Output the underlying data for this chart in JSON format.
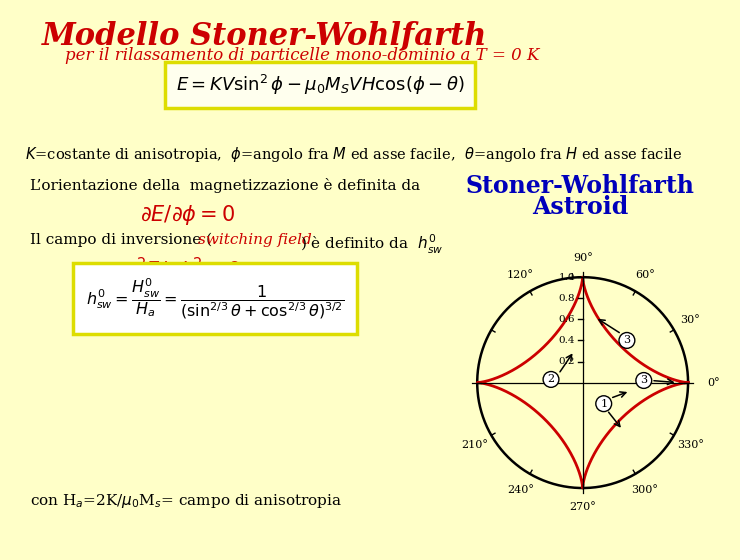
{
  "bg_color": "#ffffc8",
  "title": "Modello Stoner-Wohlfarth",
  "subtitle": "per il rilassamento di particelle mono-dominio a T = 0 K",
  "title_color": "#cc0000",
  "subtitle_color": "#cc0000",
  "astroid_title_line1": "Stoner-Wohlfarth",
  "astroid_title_line2": "Astroid",
  "astroid_title_color": "#0000bb",
  "formula_text": "$E = KV\\sin^2\\phi - \\mu_0 M_S V H \\cos(\\phi - \\theta)$",
  "line1": "$K$=costante di anisotropia,  $\\phi$=angolo fra $M$ ed asse facile,  $\\theta$=angolo fra $H$ ed asse facile",
  "line2a": "L’orientazione della  magnetizzazione è definita da",
  "line2b_italic": "$\\partial E/\\partial\\phi = 0$",
  "line3a_normal": "Il campo di inversione (",
  "line3a_red": "switching field",
  "line3a_end": ") è definito da  $h^0_{sw}$",
  "line3b_italic": "$\\partial^2 E/\\partial\\phi^2 = 0$",
  "formula2_text": "$h^0_{sw} = \\dfrac{H^0_{sw}}{H_a} = \\dfrac{1}{\\left(\\sin^{2/3}\\theta + \\cos^{2/3}\\theta\\right)^{3/2}}$",
  "line4": "con H$_a$=2K/$\\mu_0$M$_s$= campo di anisotropia",
  "astroid_color": "#cc0000",
  "circle_color": "#000000",
  "arrow_color": "#000000",
  "label_red_color": "#cc0000",
  "switching_field_color": "#cc0000",
  "tick_values": [
    0.2,
    0.4,
    0.6,
    0.8,
    1.0
  ],
  "angle_labels": {
    "0": "0°",
    "30": "30°",
    "60": "60°",
    "90": "90°",
    "120": "120°",
    "210": "210°",
    "240": "240°",
    "270": "270°",
    "300": "300°",
    "330": "330°"
  }
}
